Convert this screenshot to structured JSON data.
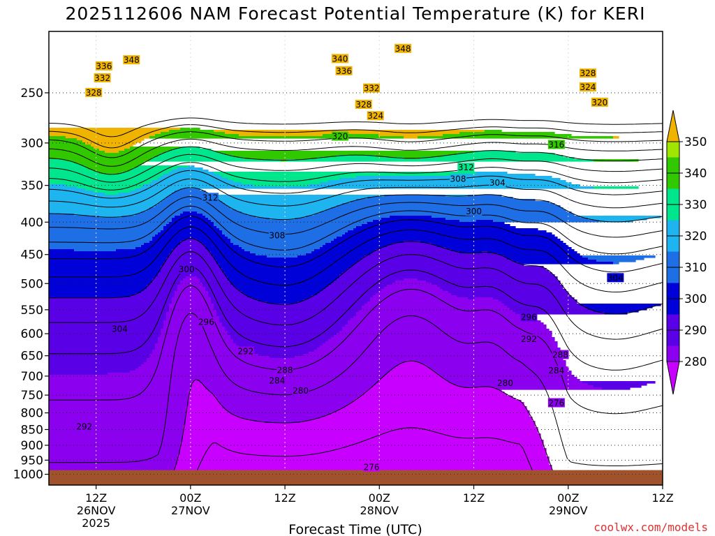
{
  "chart_data": {
    "type": "heatmap",
    "title": "2025112606 NAM Forecast Potential Temperature (K) for KERI",
    "xlabel": "Forecast Time (UTC)",
    "ylabel": "",
    "y_scale": "log-pressure",
    "y_reversed": true,
    "ylim": [
      1040,
      200
    ],
    "yticks": [
      250,
      300,
      350,
      400,
      450,
      500,
      550,
      600,
      650,
      700,
      750,
      800,
      850,
      900,
      950,
      1000
    ],
    "xlim": [
      6,
      84
    ],
    "xticks": [
      {
        "label1": "12Z",
        "label2": "26NOV",
        "label3": "2025",
        "hour": 12
      },
      {
        "label1": "00Z",
        "label2": "27NOV",
        "label3": "",
        "hour": 24
      },
      {
        "label1": "12Z",
        "label2": "",
        "label3": "",
        "hour": 36
      },
      {
        "label1": "00Z",
        "label2": "28NOV",
        "label3": "",
        "hour": 48
      },
      {
        "label1": "12Z",
        "label2": "",
        "label3": "",
        "hour": 60
      },
      {
        "label1": "00Z",
        "label2": "29NOV",
        "label3": "",
        "hour": 72
      },
      {
        "label1": "12Z",
        "label2": "",
        "label3": "",
        "hour": 84
      }
    ],
    "grid": true,
    "colorbar": {
      "position": "right",
      "levels": [
        280,
        290,
        300,
        310,
        320,
        330,
        340,
        350
      ],
      "labels": [
        "280",
        "290",
        "300",
        "310",
        "320",
        "330",
        "340",
        "350"
      ],
      "colors": [
        "#c800ff",
        "#8c00f0",
        "#5a00e6",
        "#0000d8",
        "#1e6ee6",
        "#1eb4f0",
        "#00e68c",
        "#32c800",
        "#a0e600",
        "#ffff00",
        "#f0b400"
      ]
    },
    "contour_interval": 4,
    "contour_labels": [
      {
        "text": "348",
        "hour": 16.5,
        "p": 222
      },
      {
        "text": "348",
        "hour": 51,
        "p": 213
      },
      {
        "text": "340",
        "hour": 43,
        "p": 221
      },
      {
        "text": "336",
        "hour": 43.5,
        "p": 231
      },
      {
        "text": "336",
        "hour": 13,
        "p": 227
      },
      {
        "text": "332",
        "hour": 12.8,
        "p": 237
      },
      {
        "text": "328",
        "hour": 11.7,
        "p": 250
      },
      {
        "text": "332",
        "hour": 47,
        "p": 246
      },
      {
        "text": "328",
        "hour": 46,
        "p": 261
      },
      {
        "text": "324",
        "hour": 47.5,
        "p": 272
      },
      {
        "text": "320",
        "hour": 43,
        "p": 293
      },
      {
        "text": "328",
        "hour": 74.5,
        "p": 233
      },
      {
        "text": "324",
        "hour": 74.5,
        "p": 245
      },
      {
        "text": "320",
        "hour": 76,
        "p": 259
      },
      {
        "text": "316",
        "hour": 70.5,
        "p": 302
      },
      {
        "text": "312",
        "hour": 59,
        "p": 328
      },
      {
        "text": "308",
        "hour": 58,
        "p": 342
      },
      {
        "text": "304",
        "hour": 63,
        "p": 347
      },
      {
        "text": "312",
        "hour": 26.5,
        "p": 366
      },
      {
        "text": "308",
        "hour": 35,
        "p": 420
      },
      {
        "text": "300",
        "hour": 60,
        "p": 385
      },
      {
        "text": "300",
        "hour": 23.5,
        "p": 475
      },
      {
        "text": "304",
        "hour": 78,
        "p": 490
      },
      {
        "text": "304",
        "hour": 15,
        "p": 590
      },
      {
        "text": "296",
        "hour": 26,
        "p": 575
      },
      {
        "text": "296",
        "hour": 67,
        "p": 565
      },
      {
        "text": "292",
        "hour": 31,
        "p": 640
      },
      {
        "text": "292",
        "hour": 67,
        "p": 612
      },
      {
        "text": "288",
        "hour": 36,
        "p": 685
      },
      {
        "text": "288",
        "hour": 71,
        "p": 648
      },
      {
        "text": "284",
        "hour": 35,
        "p": 712
      },
      {
        "text": "284",
        "hour": 70.5,
        "p": 686
      },
      {
        "text": "280",
        "hour": 38,
        "p": 738
      },
      {
        "text": "280",
        "hour": 64,
        "p": 718
      },
      {
        "text": "276",
        "hour": 70.5,
        "p": 772
      },
      {
        "text": "276",
        "hour": 47,
        "p": 975
      },
      {
        "text": "292",
        "hour": 10.5,
        "p": 842
      }
    ],
    "terrain_color": "#a0522d",
    "surface_pressure": 985
  },
  "footer": {
    "credit": "coolwx.com/models",
    "credit_color": "#e03030"
  }
}
